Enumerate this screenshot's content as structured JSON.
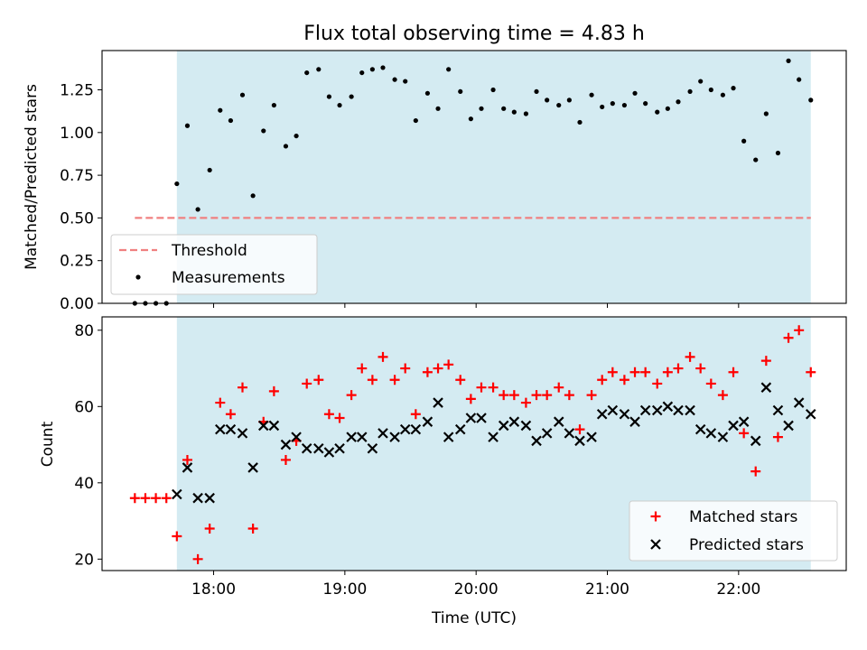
{
  "chart_data": [
    {
      "type": "scatter",
      "title": "Flux total observing time = 4.83 h",
      "xlabel": "",
      "ylabel": "Matched/Predicted stars",
      "xlim": [
        17.15,
        22.82
      ],
      "ylim": [
        0.0,
        1.48
      ],
      "yticks": [
        0.0,
        0.25,
        0.5,
        0.75,
        1.0,
        1.25
      ],
      "ytick_labels": [
        "0.00",
        "0.25",
        "0.50",
        "0.75",
        "1.00",
        "1.25"
      ],
      "xticks": [
        18,
        19,
        20,
        21,
        22
      ],
      "shaded_span": [
        17.72,
        22.55
      ],
      "threshold": {
        "label": "Threshold",
        "value": 0.5,
        "x_range": [
          17.4,
          22.55
        ],
        "color": "#f08080"
      },
      "legend": {
        "position": "lower-left",
        "entries": [
          "Threshold",
          "Measurements"
        ]
      },
      "series": [
        {
          "name": "Measurements",
          "color": "#000000",
          "x": [
            17.4,
            17.48,
            17.56,
            17.64,
            17.72,
            17.8,
            17.88,
            17.97,
            18.05,
            18.13,
            18.22,
            18.3,
            18.38,
            18.46,
            18.55,
            18.63,
            18.71,
            18.8,
            18.88,
            18.96,
            19.05,
            19.13,
            19.21,
            19.29,
            19.38,
            19.46,
            19.54,
            19.63,
            19.71,
            19.79,
            19.88,
            19.96,
            20.04,
            20.13,
            20.21,
            20.29,
            20.38,
            20.46,
            20.54,
            20.63,
            20.71,
            20.79,
            20.88,
            20.96,
            21.04,
            21.13,
            21.21,
            21.29,
            21.38,
            21.46,
            21.54,
            21.63,
            21.71,
            21.79,
            21.88,
            21.96,
            22.04,
            22.13,
            22.21,
            22.3,
            22.38,
            22.46,
            22.55
          ],
          "values": [
            0.0,
            0.0,
            0.0,
            0.0,
            0.7,
            1.04,
            0.55,
            0.78,
            1.13,
            1.07,
            1.22,
            0.63,
            1.01,
            1.16,
            0.92,
            0.98,
            1.35,
            1.37,
            1.21,
            1.16,
            1.21,
            1.35,
            1.37,
            1.38,
            1.31,
            1.3,
            1.07,
            1.23,
            1.14,
            1.37,
            1.24,
            1.08,
            1.14,
            1.25,
            1.14,
            1.12,
            1.11,
            1.24,
            1.19,
            1.16,
            1.19,
            1.06,
            1.22,
            1.15,
            1.17,
            1.16,
            1.23,
            1.17,
            1.12,
            1.14,
            1.18,
            1.24,
            1.3,
            1.25,
            1.22,
            1.26,
            0.95,
            0.84,
            1.11,
            0.88,
            1.42,
            1.31,
            1.19
          ]
        }
      ]
    },
    {
      "type": "scatter",
      "title": "",
      "xlabel": "Time (UTC)",
      "ylabel": "Count",
      "xlim": [
        17.15,
        22.82
      ],
      "ylim": [
        17,
        83.5
      ],
      "yticks": [
        20,
        40,
        60,
        80
      ],
      "ytick_labels": [
        "20",
        "40",
        "60",
        "80"
      ],
      "xticks": [
        18,
        19,
        20,
        21,
        22
      ],
      "xtick_labels": [
        "18:00",
        "19:00",
        "20:00",
        "21:00",
        "22:00"
      ],
      "shaded_span": [
        17.72,
        22.55
      ],
      "legend": {
        "position": "lower-right",
        "entries": [
          "Matched stars",
          "Predicted stars"
        ]
      },
      "series": [
        {
          "name": "Matched stars",
          "marker": "plus",
          "color": "#ff0000",
          "x": [
            17.4,
            17.48,
            17.56,
            17.64,
            17.72,
            17.8,
            17.88,
            17.97,
            18.05,
            18.13,
            18.22,
            18.3,
            18.38,
            18.46,
            18.55,
            18.63,
            18.71,
            18.8,
            18.88,
            18.96,
            19.05,
            19.13,
            19.21,
            19.29,
            19.38,
            19.46,
            19.54,
            19.63,
            19.71,
            19.79,
            19.88,
            19.96,
            20.04,
            20.13,
            20.21,
            20.29,
            20.38,
            20.46,
            20.54,
            20.63,
            20.71,
            20.79,
            20.88,
            20.96,
            21.04,
            21.13,
            21.21,
            21.29,
            21.38,
            21.46,
            21.54,
            21.63,
            21.71,
            21.79,
            21.88,
            21.96,
            22.04,
            22.13,
            22.21,
            22.3,
            22.38,
            22.46,
            22.55
          ],
          "values": [
            36,
            36,
            36,
            36,
            26,
            46,
            20,
            28,
            61,
            58,
            65,
            28,
            56,
            64,
            46,
            51,
            66,
            67,
            58,
            57,
            63,
            70,
            67,
            73,
            67,
            70,
            58,
            69,
            70,
            71,
            67,
            62,
            65,
            65,
            63,
            63,
            61,
            63,
            63,
            65,
            63,
            54,
            63,
            67,
            69,
            67,
            69,
            69,
            66,
            69,
            70,
            73,
            70,
            66,
            63,
            69,
            53,
            43,
            72,
            52,
            78,
            80,
            69
          ]
        },
        {
          "name": "Predicted stars",
          "marker": "x",
          "color": "#000000",
          "x": [
            17.72,
            17.8,
            17.88,
            17.97,
            18.05,
            18.13,
            18.22,
            18.3,
            18.38,
            18.46,
            18.55,
            18.63,
            18.71,
            18.8,
            18.88,
            18.96,
            19.05,
            19.13,
            19.21,
            19.29,
            19.38,
            19.46,
            19.54,
            19.63,
            19.71,
            19.79,
            19.88,
            19.96,
            20.04,
            20.13,
            20.21,
            20.29,
            20.38,
            20.46,
            20.54,
            20.63,
            20.71,
            20.79,
            20.88,
            20.96,
            21.04,
            21.13,
            21.21,
            21.29,
            21.38,
            21.46,
            21.54,
            21.63,
            21.71,
            21.79,
            21.88,
            21.96,
            22.04,
            22.13,
            22.21,
            22.3,
            22.38,
            22.46,
            22.55
          ],
          "values": [
            37,
            44,
            36,
            36,
            54,
            54,
            53,
            44,
            55,
            55,
            50,
            52,
            49,
            49,
            48,
            49,
            52,
            52,
            49,
            53,
            52,
            54,
            54,
            56,
            61,
            52,
            54,
            57,
            57,
            52,
            55,
            56,
            55,
            51,
            53,
            56,
            53,
            51,
            52,
            58,
            59,
            58,
            56,
            59,
            59,
            60,
            59,
            59,
            54,
            53,
            52,
            55,
            56,
            51,
            65,
            59,
            55,
            61,
            58
          ]
        }
      ]
    }
  ]
}
